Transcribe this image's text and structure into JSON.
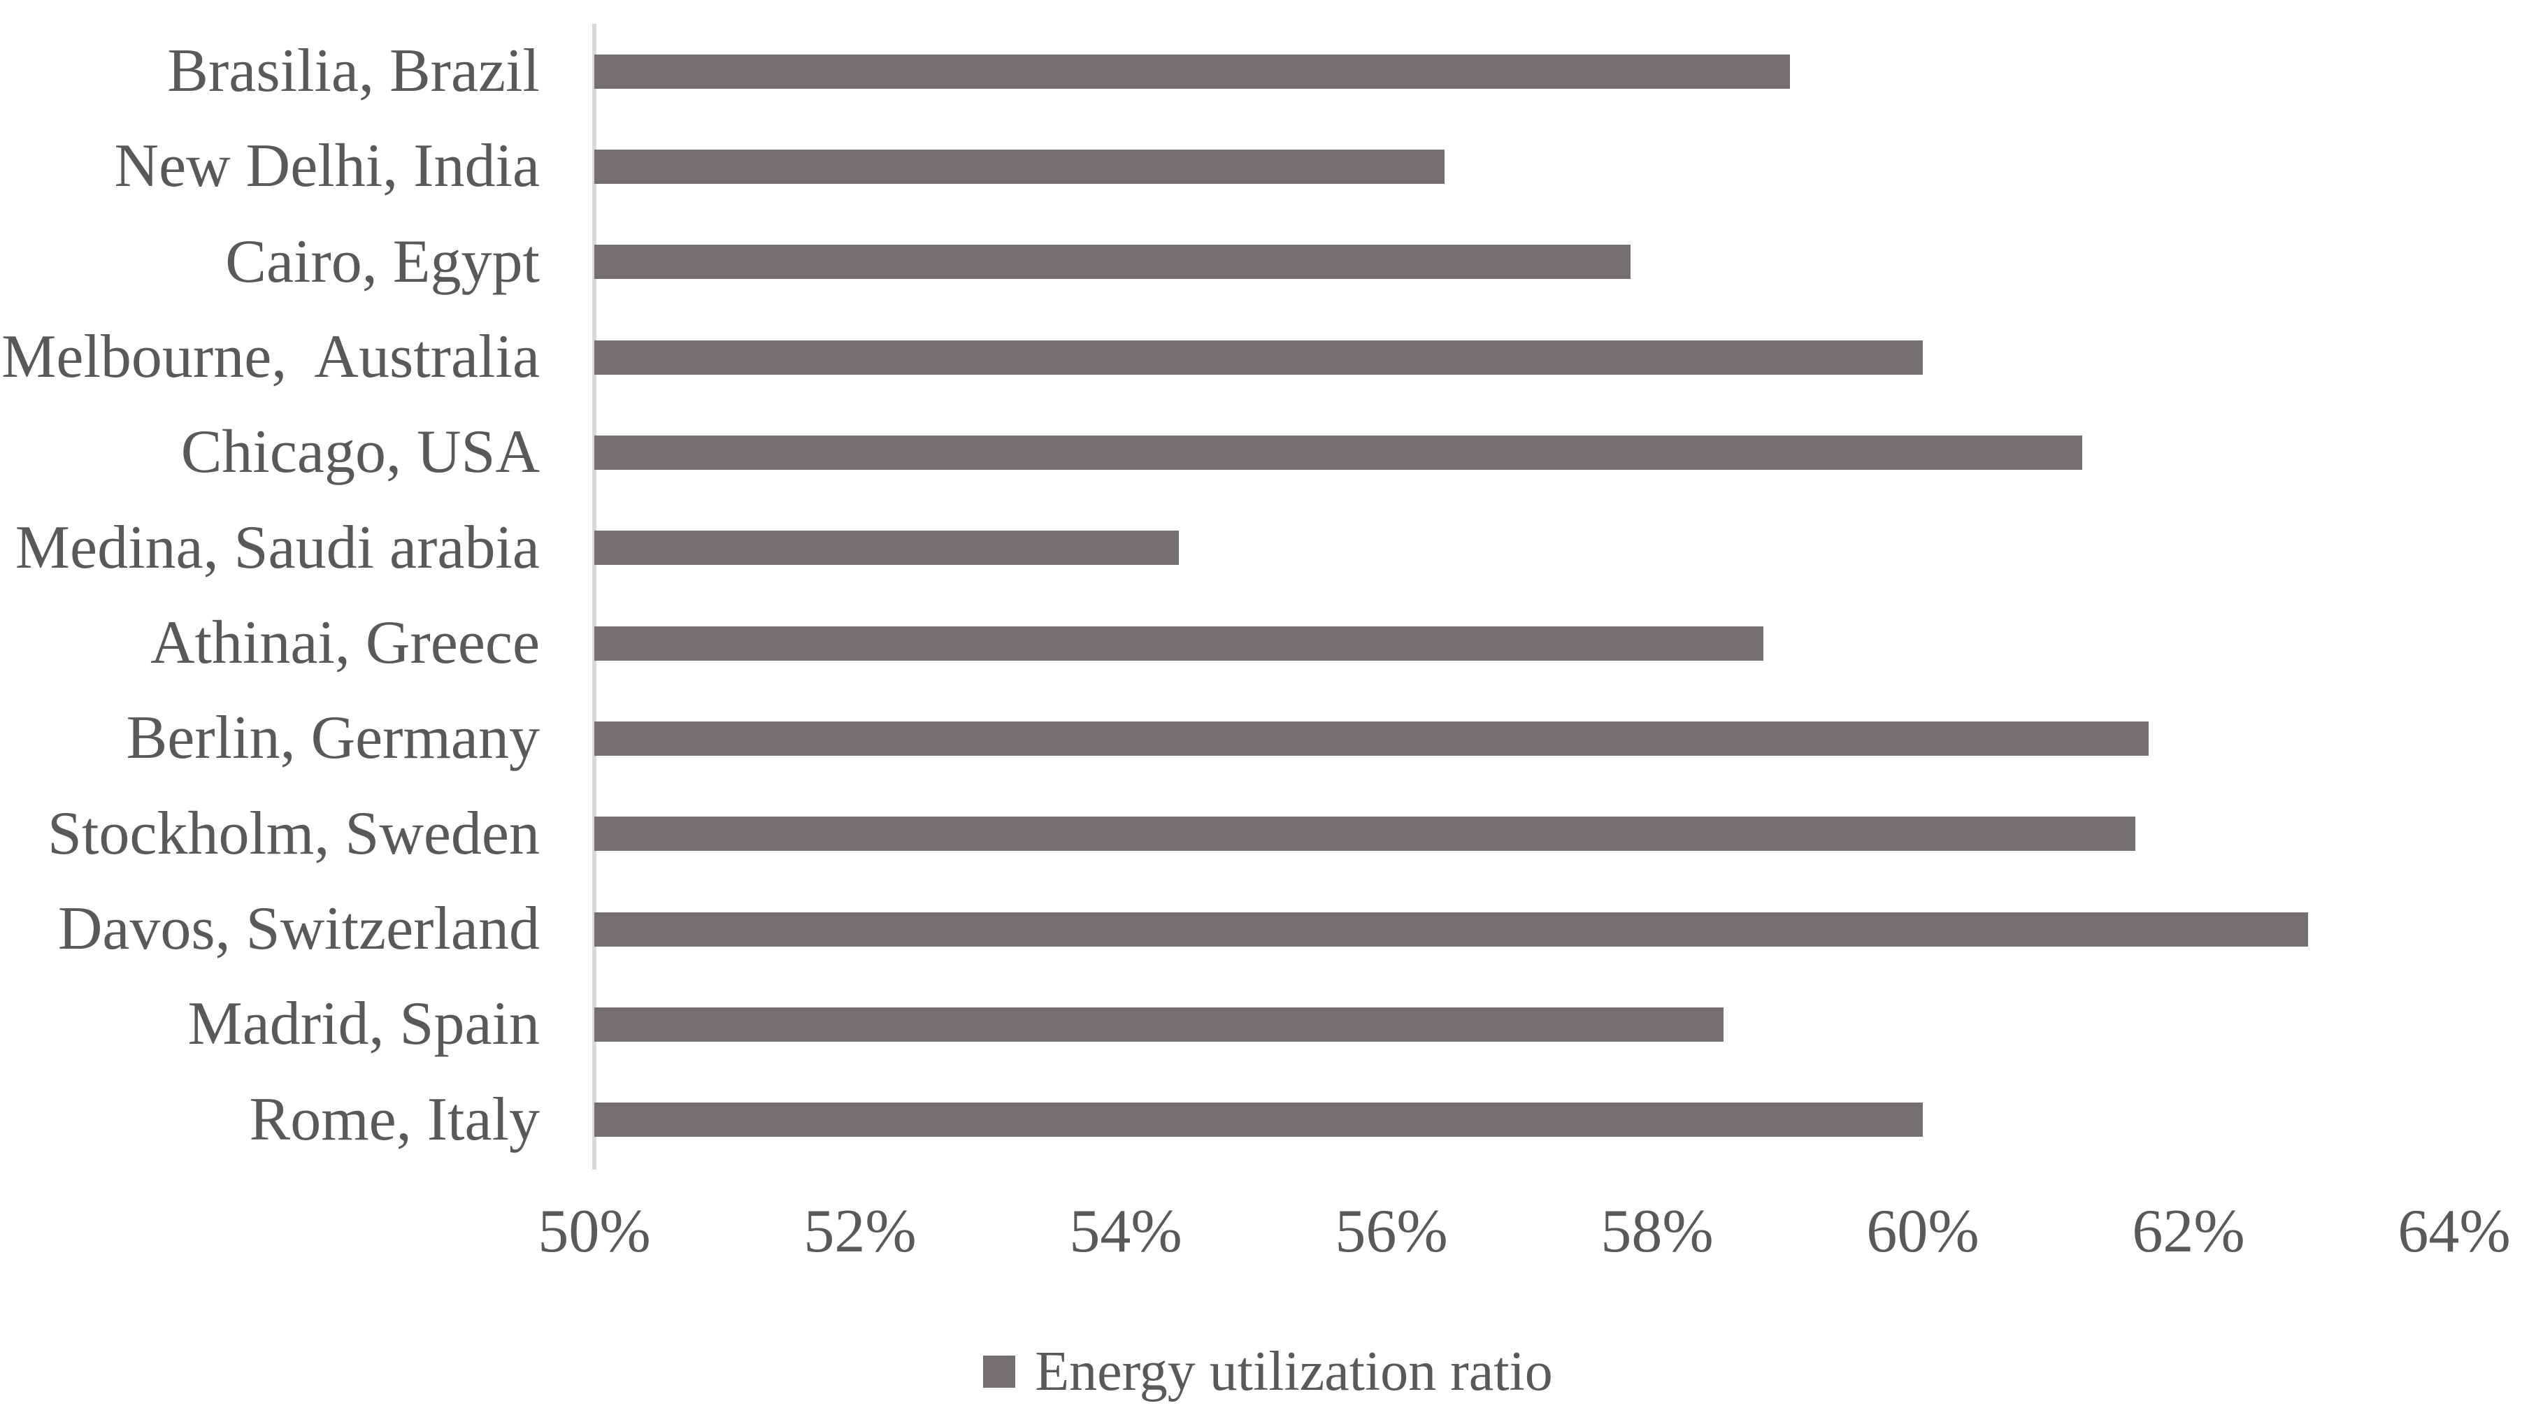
{
  "chart_data": {
    "type": "bar",
    "orientation": "horizontal",
    "title": "",
    "xlabel": "",
    "ylabel": "",
    "categories": [
      "Brasilia, Brazil",
      "New Delhi, India",
      "Cairo, Egypt",
      "Melbourne,  Australia",
      "Chicago, USA",
      "Medina, Saudi arabia",
      "Athinai, Greece",
      "Berlin, Germany",
      "Stockholm, Sweden",
      "Davos, Switzerland",
      "Madrid, Spain",
      "Rome, Italy"
    ],
    "series": [
      {
        "name": "Energy utilization ratio",
        "values": [
          59.0,
          56.4,
          57.8,
          60.0,
          61.2,
          54.4,
          58.8,
          61.7,
          61.6,
          62.9,
          58.5,
          60.0
        ]
      }
    ],
    "value_unit": "%",
    "xlim": [
      50,
      64
    ],
    "x_ticks": [
      {
        "value": 50,
        "label": "50%"
      },
      {
        "value": 52,
        "label": "52%"
      },
      {
        "value": 54,
        "label": "54%"
      },
      {
        "value": 56,
        "label": "56%"
      },
      {
        "value": 58,
        "label": "58%"
      },
      {
        "value": 60,
        "label": "60%"
      },
      {
        "value": 62,
        "label": "62%"
      },
      {
        "value": 64,
        "label": "64%"
      }
    ],
    "grid": false,
    "legend_position": "bottom-center"
  },
  "legend": {
    "label": "Energy utilization ratio"
  },
  "colors": {
    "bar": "#747070",
    "text": "#595959",
    "axis_line": "#d8d8d8",
    "background": "#ffffff"
  }
}
